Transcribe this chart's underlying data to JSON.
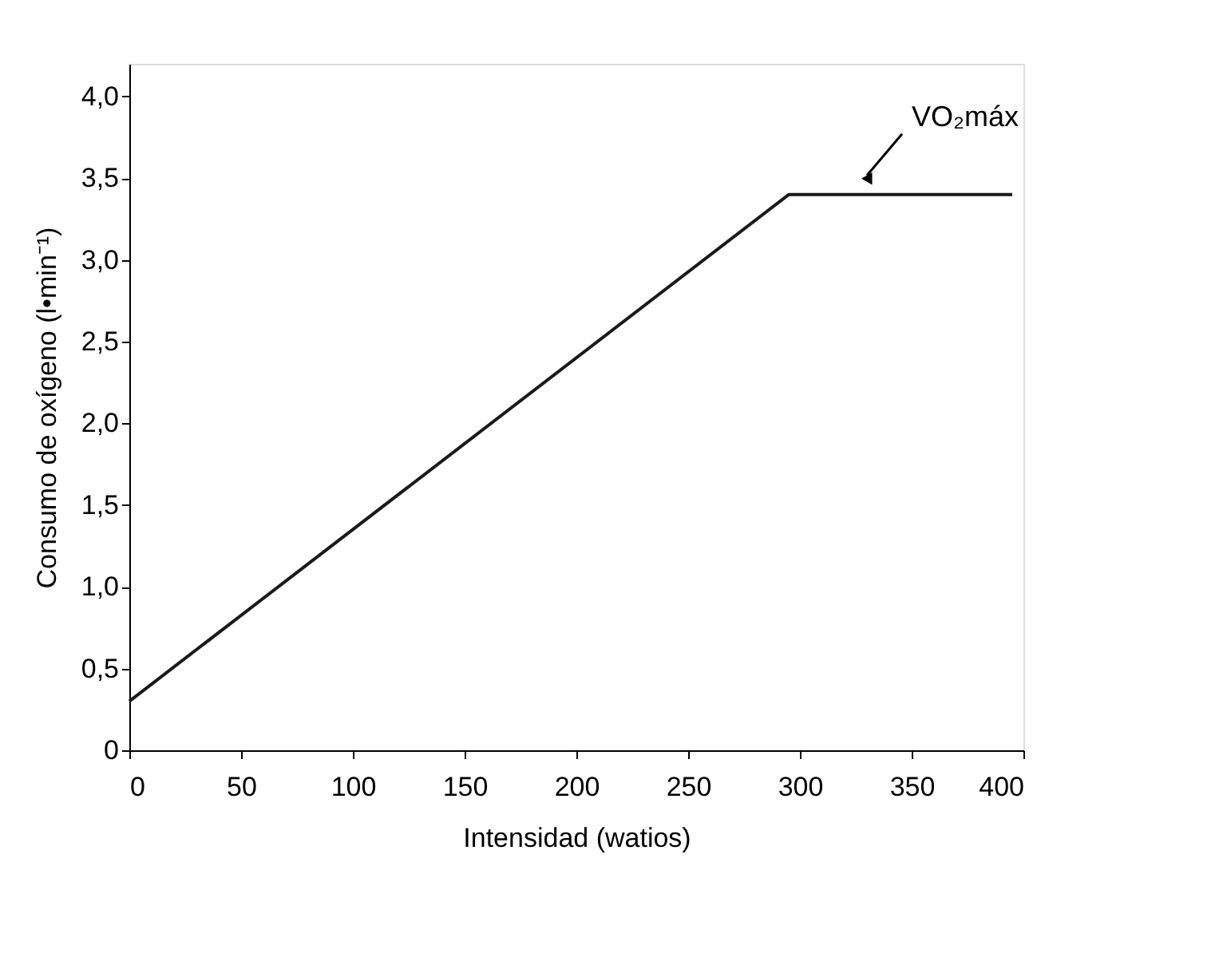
{
  "chart_data": {
    "type": "line",
    "xlabel": "Intensidad (watios)",
    "ylabel": "Consumo de oxígeno (l•min⁻¹)",
    "series": [
      {
        "color": "#1a1a1a",
        "x": [
          0,
          295,
          395
        ],
        "values": [
          0.3,
          3.4,
          3.4
        ]
      }
    ],
    "xlim": [
      0,
      400
    ],
    "xticks": [
      0,
      50,
      100,
      150,
      200,
      250,
      300,
      350,
      400
    ],
    "ylim": [
      0,
      4.2
    ],
    "yticks": [
      0,
      {
        "value": 0.5,
        "label": "0,5"
      },
      {
        "value": 1,
        "label": "1,0"
      },
      {
        "value": 1.5,
        "label": "1,5"
      },
      {
        "value": 2,
        "label": "2,0"
      },
      {
        "value": 2.5,
        "label": "2,5"
      },
      {
        "value": 3,
        "label": "3,0"
      },
      {
        "value": 3.5,
        "label": "3,5"
      },
      {
        "value": 4,
        "label": "4,0"
      }
    ],
    "annotations": [
      {
        "text": "VO₂máx",
        "x": 330,
        "y": 3.4
      }
    ],
    "grid": false,
    "marker": "none",
    "line_style": "solid"
  }
}
